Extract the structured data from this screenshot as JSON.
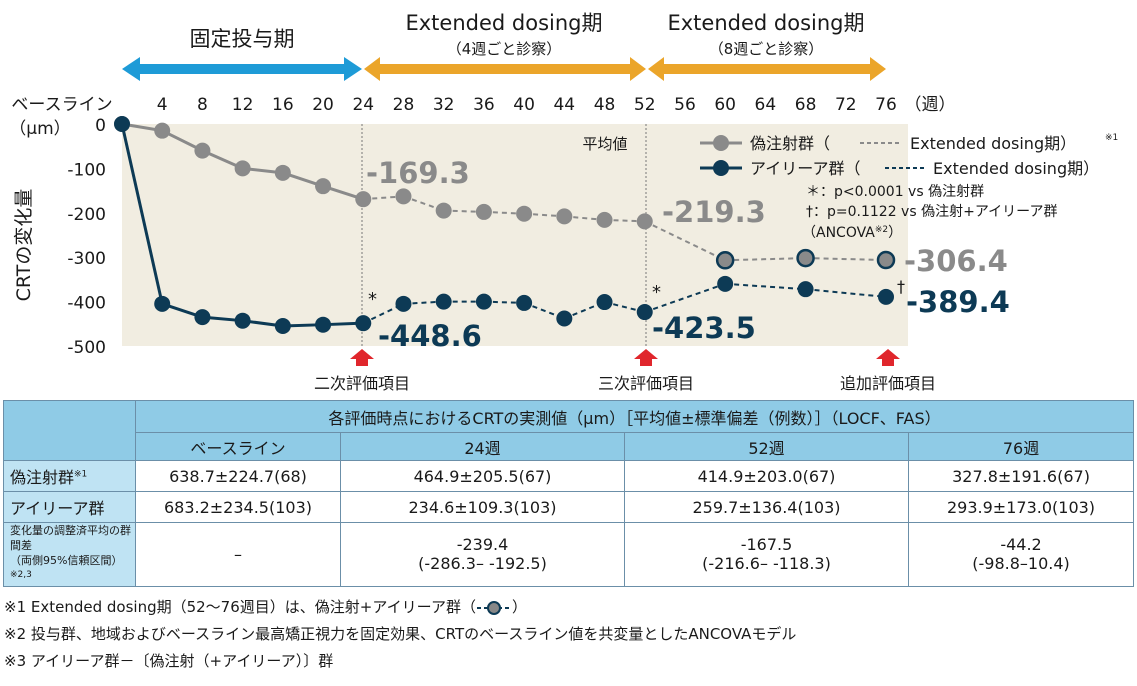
{
  "chart_data": {
    "type": "line",
    "phases": [
      {
        "label": "固定投与期",
        "sub": ""
      },
      {
        "label": "Extended dosing期",
        "sub": "（4週ごと診察）"
      },
      {
        "label": "Extended dosing期",
        "sub": "（8週ごと診察）"
      }
    ],
    "x_axis": {
      "first_tick": "ベースライン",
      "ticks": [
        4,
        8,
        12,
        16,
        20,
        24,
        28,
        32,
        36,
        40,
        44,
        48,
        52,
        56,
        60,
        64,
        68,
        72,
        76
      ],
      "unit": "（週）",
      "range": [
        0,
        76
      ]
    },
    "y_axis": {
      "unit": "（μm）",
      "label": "CRTの変化量",
      "ticks": [
        0,
        -100,
        -200,
        -300,
        -400,
        -500
      ],
      "range": [
        -500,
        0
      ]
    },
    "mean_label": "平均値",
    "series": [
      {
        "name": "偽注射群",
        "color": "#8a8a8a",
        "x": [
          0,
          4,
          8,
          12,
          16,
          20,
          24,
          28,
          32,
          36,
          40,
          44,
          48,
          52,
          60,
          68,
          76
        ],
        "values": [
          0,
          -15,
          -60,
          -100,
          -110,
          -140,
          -169.3,
          -163,
          -195,
          -198,
          -202,
          -208,
          -216,
          -219.3,
          -307,
          -302,
          -306.4
        ]
      },
      {
        "name": "アイリーア群",
        "color": "#0d3a55",
        "x": [
          0,
          4,
          8,
          12,
          16,
          20,
          24,
          28,
          32,
          36,
          40,
          44,
          48,
          52,
          60,
          68,
          76
        ],
        "values": [
          0,
          -405,
          -435,
          -443,
          -455,
          -452,
          -448.6,
          -405,
          -400,
          -400,
          -403,
          -438,
          -401,
          -423.5,
          -360,
          -372,
          -389.4
        ]
      }
    ],
    "data_labels": {
      "sham": [
        "-169.3",
        "-219.3",
        "-306.4"
      ],
      "eylea": [
        "-448.6",
        "-423.5",
        "-389.4"
      ],
      "star": "*",
      "dagger": "†"
    },
    "legend": {
      "sham": "偽注射群（",
      "sham_ext": "Extended dosing期）",
      "sham_note": "※1",
      "eylea": "アイリーア群（",
      "eylea_ext": "Extended dosing期）",
      "note1": "＊：p<0.0001 vs 偽注射群",
      "note2": "†：p=0.1122 vs 偽注射+アイリーア群",
      "note3": "（ANCOVA",
      "note3_sup": "※2",
      "note3_end": "）"
    },
    "markers": [
      "二次評価項目",
      "三次評価項目",
      "追加評価項目"
    ],
    "colors": {
      "blue": "#1e9bd7",
      "orange": "#eba52a",
      "bg": "#f1ede1",
      "red": "#e0262c"
    }
  },
  "table": {
    "title": "各評価時点におけるCRTの実測値（μm）［平均値±標準偏差（例数）］（LOCF、FAS）",
    "columns": [
      "ベースライン",
      "24週",
      "52週",
      "76週"
    ],
    "rows": [
      {
        "label": "偽注射群",
        "sup": "※1",
        "cells": [
          "638.7±224.7(68)",
          "464.9±205.5(67)",
          "414.9±203.0(67)",
          "327.8±191.6(67)"
        ]
      },
      {
        "label": "アイリーア群",
        "sup": "",
        "cells": [
          "683.2±234.5(103)",
          "234.6±109.3(103)",
          "259.7±136.4(103)",
          "293.9±173.0(103)"
        ]
      }
    ],
    "diff_row": {
      "label1": "変化量の調整済平均の群間差",
      "label2": "（両側95%信頼区間）",
      "sup": "※2,3",
      "cells": [
        {
          "main": "–",
          "ci": ""
        },
        {
          "main": "-239.4",
          "ci": "(-286.3– -192.5)"
        },
        {
          "main": "-167.5",
          "ci": "(-216.6– -118.3)"
        },
        {
          "main": "-44.2",
          "ci": "(-98.8–10.4)"
        }
      ]
    }
  },
  "footnotes": {
    "n1_prefix": "※1 Extended dosing期（52～76週目）は、偽注射+アイリーア群（",
    "n1_suffix": "）",
    "n2": "※2 投与群、地域およびベースライン最高矯正視力を固定効果、CRTのベースライン値を共変量としたANCOVAモデル",
    "n3": "※3 アイリーア群－〔偽注射（+アイリーア）〕群"
  }
}
